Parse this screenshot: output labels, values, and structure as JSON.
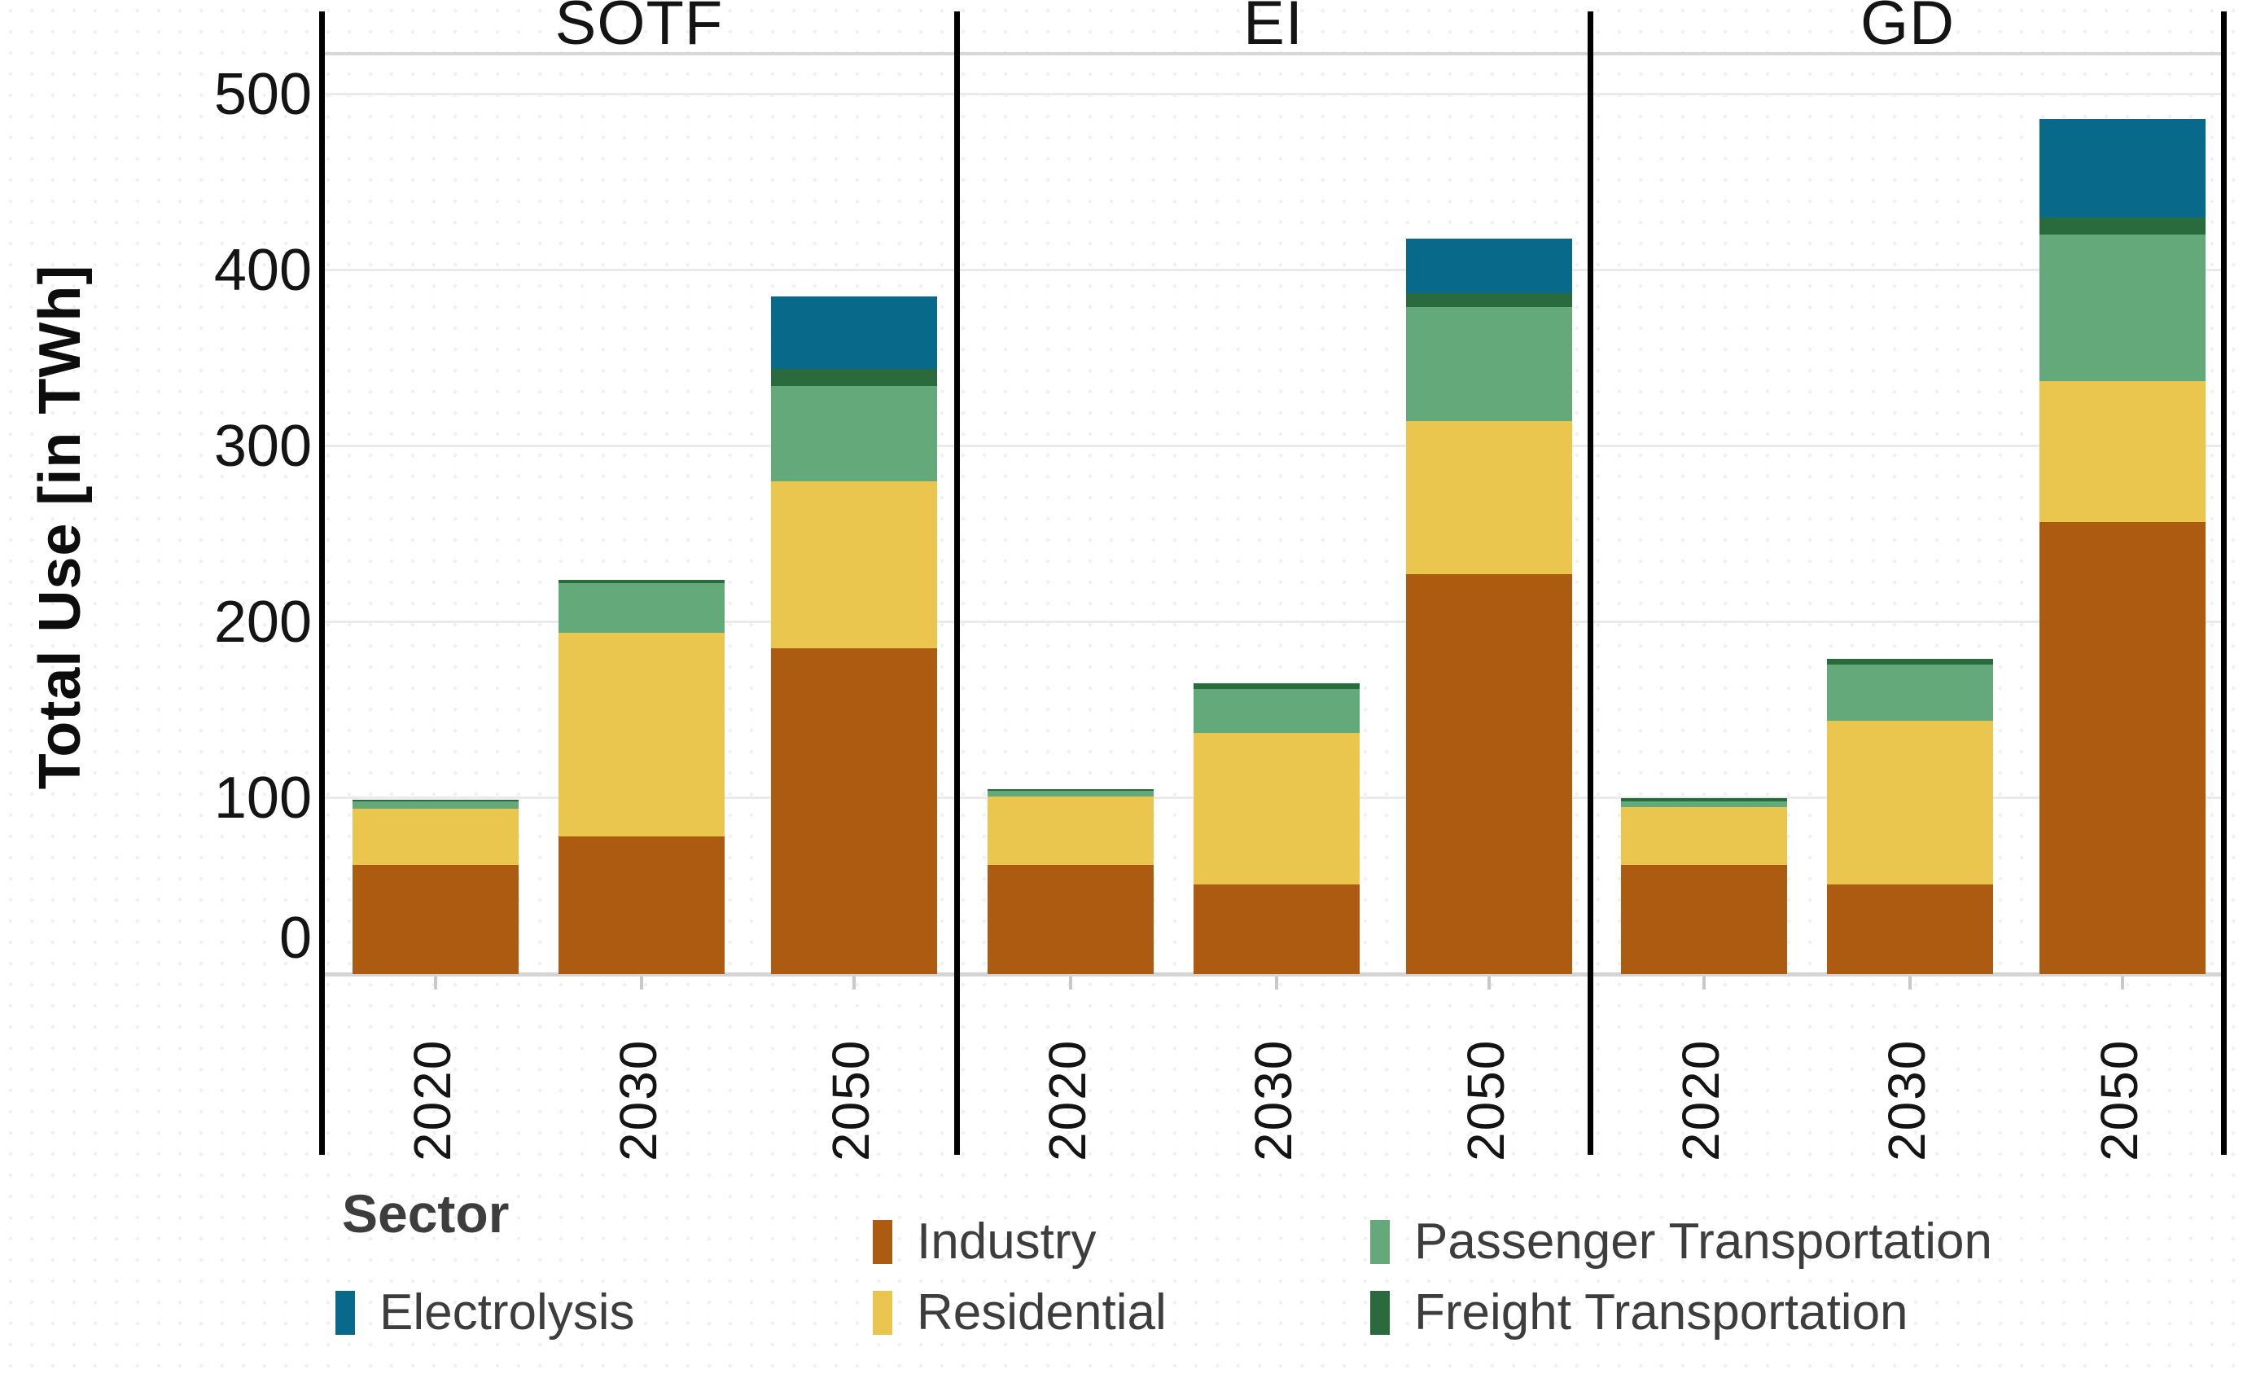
{
  "y_axis": {
    "title": "Total Use [in TWh]",
    "ticks": [
      0,
      100,
      200,
      300,
      400,
      500
    ]
  },
  "legend": {
    "title": "Sector",
    "entries": [
      {
        "key": "electrolysis",
        "label": "Electrolysis"
      },
      {
        "key": "industry",
        "label": "Industry"
      },
      {
        "key": "residential",
        "label": "Residential"
      },
      {
        "key": "passenger",
        "label": "Passenger Transportation"
      },
      {
        "key": "freight",
        "label": "Freight Transportation"
      }
    ]
  },
  "colors": {
    "industry": "#AC5B10",
    "residential": "#EAC64F",
    "passenger": "#64A97A",
    "freight": "#2A6B3D",
    "electrolysis": "#09698B",
    "accent_text": "#141414",
    "legend_text": "#3d3d3d"
  },
  "chart_data": {
    "type": "bar",
    "stacked": true,
    "title": "",
    "xlabel": "",
    "ylabel": "Total Use [in TWh]",
    "ylim": [
      0,
      522
    ],
    "grid": "horizontal",
    "legend_position": "bottom",
    "categories": [
      "2020",
      "2030",
      "2050"
    ],
    "stack_order_bottom_to_top": [
      "industry",
      "residential",
      "passenger",
      "freight",
      "electrolysis"
    ],
    "facets": [
      {
        "name": "SOTF",
        "bars": [
          {
            "year": "2020",
            "values": {
              "industry": 62,
              "residential": 32,
              "passenger": 4,
              "freight": 1,
              "electrolysis": 0
            },
            "total": 99
          },
          {
            "year": "2030",
            "values": {
              "industry": 78,
              "residential": 116,
              "passenger": 28,
              "freight": 2,
              "electrolysis": 0
            },
            "total": 224
          },
          {
            "year": "2050",
            "values": {
              "industry": 185,
              "residential": 95,
              "passenger": 54,
              "freight": 10,
              "electrolysis": 41
            },
            "total": 385
          }
        ]
      },
      {
        "name": "EI",
        "bars": [
          {
            "year": "2020",
            "values": {
              "industry": 62,
              "residential": 39,
              "passenger": 3,
              "freight": 1,
              "electrolysis": 0
            },
            "total": 105
          },
          {
            "year": "2030",
            "values": {
              "industry": 51,
              "residential": 86,
              "passenger": 25,
              "freight": 3,
              "electrolysis": 0
            },
            "total": 165
          },
          {
            "year": "2050",
            "values": {
              "industry": 227,
              "residential": 87,
              "passenger": 65,
              "freight": 8,
              "electrolysis": 31
            },
            "total": 418
          }
        ]
      },
      {
        "name": "GD",
        "bars": [
          {
            "year": "2020",
            "values": {
              "industry": 62,
              "residential": 33,
              "passenger": 3,
              "freight": 2,
              "electrolysis": 0
            },
            "total": 100
          },
          {
            "year": "2030",
            "values": {
              "industry": 51,
              "residential": 93,
              "passenger": 32,
              "freight": 3,
              "electrolysis": 0
            },
            "total": 179
          },
          {
            "year": "2050",
            "values": {
              "industry": 257,
              "residential": 80,
              "passenger": 83,
              "freight": 10,
              "electrolysis": 56
            },
            "total": 486
          }
        ]
      }
    ]
  }
}
